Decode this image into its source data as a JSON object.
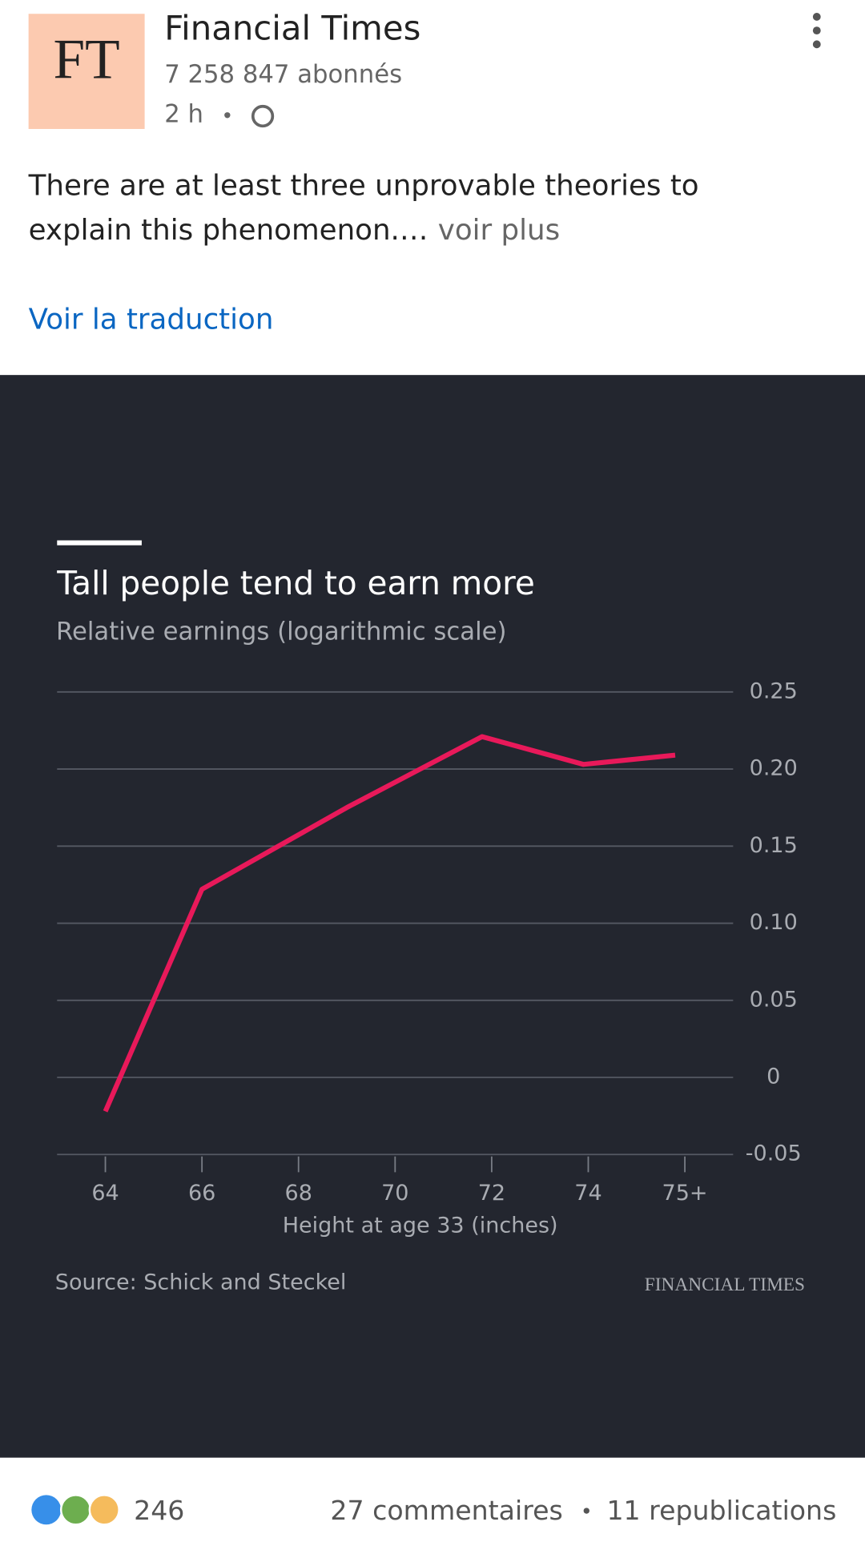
{
  "post": {
    "logo": "FT",
    "author": "Financial Times",
    "followers": "7 258 847 abonnés",
    "time": "2 h",
    "text_lines": [
      "There are at least three unprovable theories to",
      "explain this phenomenon.…"
    ],
    "more": "voir plus",
    "translate": "Voir la traduction",
    "reactions": "246",
    "comments": "27 commentaires",
    "reposts": "11 republications"
  },
  "chart_data": {
    "type": "line",
    "title": "Tall people tend to earn more",
    "subtitle": "Relative earnings (logarithmic scale)",
    "x_label": "Height at age 33 (inches)",
    "source": "Source: Schick and Steckel",
    "brand": "FINANCIAL TIMES",
    "x": [
      64,
      66,
      69,
      71.8,
      73.9,
      75.8
    ],
    "series": [
      {
        "name": "Relative earnings",
        "color": "#e8195a",
        "values": [
          -0.022,
          0.122,
          0.175,
          0.221,
          0.203,
          0.209
        ]
      }
    ],
    "xlim": [
      63,
      77
    ],
    "xticks": [
      64,
      66,
      68,
      70,
      72,
      74,
      {
        "value": 76,
        "label": "75+"
      }
    ],
    "ylim": [
      -0.05,
      0.25
    ],
    "yticks": [
      -0.05,
      0,
      0.05,
      {
        "value": 0.1,
        "label": "0.10"
      },
      0.15,
      {
        "value": 0.2,
        "label": "0.20"
      },
      0.25
    ],
    "grid": true
  }
}
